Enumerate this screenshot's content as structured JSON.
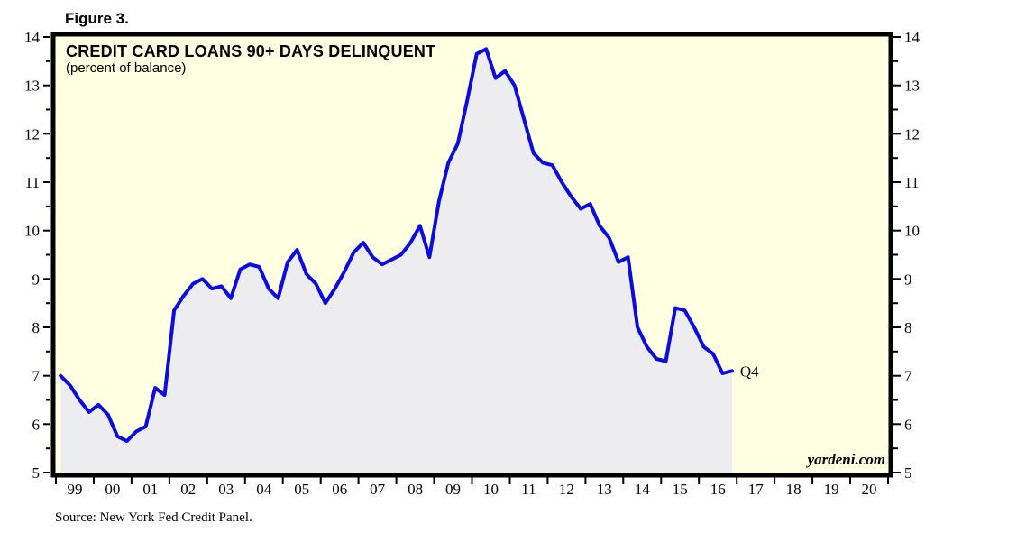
{
  "figure_label": "Figure 3.",
  "source": "Source: New York Fed Credit Panel.",
  "watermark": "yardeni.com",
  "colors": {
    "line": "#0c0ce0",
    "area_fill": "#ededf0",
    "plot_background": "#ffffe2",
    "frame": "#000000",
    "end_label": "#0c0ce0"
  },
  "chart_data": {
    "type": "area",
    "title": "CREDIT CARD LOANS 90+ DAYS DELINQUENT",
    "subtitle": "(percent of balance)",
    "frequency": "quarterly",
    "grid": false,
    "legend": "none",
    "ylim": [
      5,
      14
    ],
    "y_major_ticks": [
      5,
      6,
      7,
      8,
      9,
      10,
      11,
      12,
      13,
      14
    ],
    "y_minor_tick_step": 0.5,
    "y_axis_both_sides": true,
    "x_tick_labels": [
      "99",
      "00",
      "01",
      "02",
      "03",
      "04",
      "05",
      "06",
      "07",
      "08",
      "09",
      "10",
      "11",
      "12",
      "13",
      "14",
      "15",
      "16",
      "17",
      "18",
      "19",
      "20"
    ],
    "end_label": "Q4",
    "series": [
      {
        "name": "Credit card loans 90+ days delinquent (percent of balance)",
        "start_quarter": "1999Q1",
        "end_quarter": "2016Q4",
        "values": [
          7.0,
          6.8,
          6.5,
          6.25,
          6.4,
          6.2,
          5.75,
          5.65,
          5.85,
          5.95,
          6.75,
          6.6,
          8.35,
          8.65,
          8.9,
          9.0,
          8.8,
          8.85,
          8.6,
          9.2,
          9.3,
          9.25,
          8.8,
          8.6,
          9.35,
          9.6,
          9.1,
          8.9,
          8.5,
          8.8,
          9.15,
          9.55,
          9.75,
          9.45,
          9.3,
          9.4,
          9.5,
          9.75,
          10.1,
          9.45,
          10.6,
          11.4,
          11.8,
          12.7,
          13.65,
          13.75,
          13.15,
          13.3,
          13.0,
          12.3,
          11.6,
          11.4,
          11.35,
          11.0,
          10.7,
          10.45,
          10.55,
          10.1,
          9.85,
          9.35,
          9.45,
          8.0,
          7.6,
          7.35,
          7.3,
          8.4,
          8.35,
          8.0,
          7.6,
          7.45,
          7.05,
          7.1
        ]
      }
    ]
  }
}
